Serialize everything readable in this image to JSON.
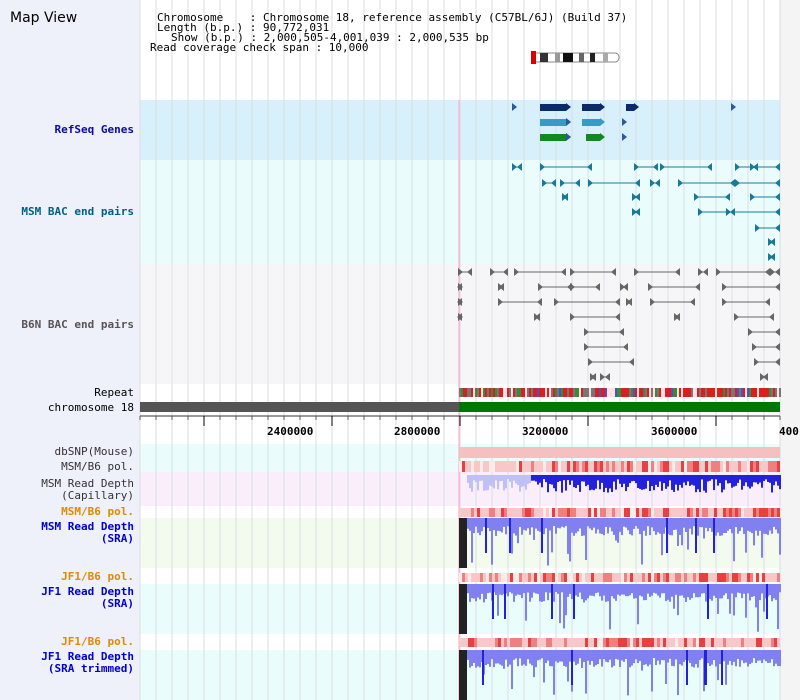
{
  "view": {
    "title": "Map View"
  },
  "info": {
    "chromosome": "Chromosome    : Chromosome 18, reference assembly (C57BL/6J) (Build 37)",
    "length": "Length (b.p.) : 90,772,031",
    "show": "Show (b.p.) : 2,000,505-4,001,039 : 2,000,535 bp",
    "coverage": "Read coverage check span : 10,000"
  },
  "tracks": {
    "refseq": "RefSeq Genes",
    "msm_bac": "MSM BAC end pairs",
    "b6n_bac": "B6N BAC end pairs",
    "repeat": "Repeat",
    "chromosome": "chromosome 18",
    "dbsnp": "dbSNP(Mouse)",
    "msm_b6_pol": "MSM/B6 pol.",
    "msm_depth_cap_1": "MSM Read Depth",
    "msm_depth_cap_2": "(Capillary)",
    "msm_b6_pol_2": "MSM/B6 pol.",
    "msm_depth_sra_1": "MSM Read Depth",
    "msm_depth_sra_2": "(SRA)",
    "jf1_pol_1": "JF1/B6 pol.",
    "jf1_depth_sra_1": "JF1 Read Depth",
    "jf1_depth_sra_2": "(SRA)",
    "jf1_pol_2": "JF1/B6 pol.",
    "jf1_depth_trim_1": "JF1 Read Depth",
    "jf1_depth_trim_2": "(SRA trimmed)"
  },
  "axis": {
    "ticks": [
      "2400000",
      "2800000",
      "3200000",
      "3600000",
      "400"
    ]
  },
  "colors": {
    "refseq_bg": "#d8f0fb",
    "msm_bg": "#eafdfc",
    "b6n_bg": "#f6f6f8",
    "cap_bg": "#fbeefb",
    "sra_bg": "#f2fbee",
    "jf1_bg": "#e9fdfb",
    "gene_navy": "#0a2a6a",
    "gene_blue": "#3a9ac6",
    "gene_green": "#108a20",
    "msm_bac": "#167a96",
    "b6n_bac": "#666666",
    "depth_blue": "#2222dd",
    "depth_light": "#8080f0",
    "chrom_green": "#007700"
  }
}
